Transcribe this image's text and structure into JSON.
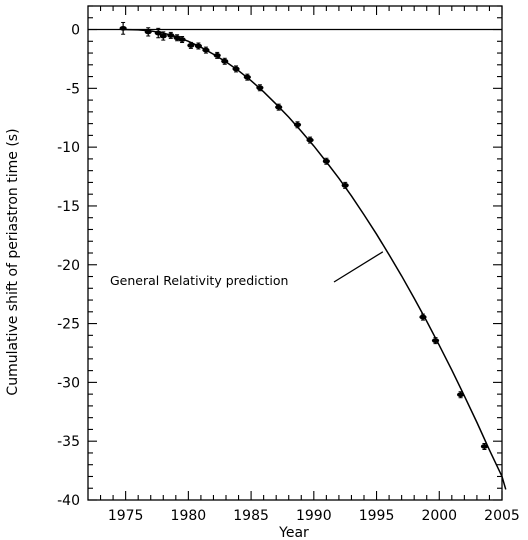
{
  "chart_data": {
    "type": "line",
    "title": "",
    "xlabel": "Year",
    "ylabel": "Cumulative shift of periastron time (s)",
    "xlim": [
      1972,
      2005
    ],
    "ylim": [
      -40,
      2
    ],
    "x_ticks": [
      1975,
      1980,
      1985,
      1990,
      1995,
      2000,
      2005
    ],
    "y_ticks": [
      0,
      -5,
      -10,
      -15,
      -20,
      -25,
      -30,
      -35,
      -40
    ],
    "grid": false,
    "legend": "none",
    "reference_line_y": 0,
    "annotation": {
      "text": "General Relativity prediction",
      "points_to": [
        1995.5,
        -18.9
      ]
    },
    "series": [
      {
        "kind": "curve",
        "points": [
          [
            1974.8,
            0.0
          ],
          [
            1976,
            -0.03
          ],
          [
            1977,
            -0.12
          ],
          [
            1978,
            -0.3
          ],
          [
            1979,
            -0.6
          ],
          [
            1980,
            -1.0
          ],
          [
            1981,
            -1.5
          ],
          [
            1982,
            -2.1
          ],
          [
            1983,
            -2.75
          ],
          [
            1984,
            -3.5
          ],
          [
            1985,
            -4.35
          ],
          [
            1986,
            -5.3
          ],
          [
            1987,
            -6.35
          ],
          [
            1988,
            -7.45
          ],
          [
            1989,
            -8.65
          ],
          [
            1990,
            -9.9
          ],
          [
            1991,
            -11.25
          ],
          [
            1992,
            -12.65
          ],
          [
            1993,
            -14.15
          ],
          [
            1994,
            -15.75
          ],
          [
            1995,
            -17.4
          ],
          [
            1996,
            -19.15
          ],
          [
            1997,
            -20.95
          ],
          [
            1998,
            -22.85
          ],
          [
            1999,
            -24.8
          ],
          [
            2000,
            -26.85
          ],
          [
            2001,
            -28.95
          ],
          [
            2002,
            -31.15
          ],
          [
            2003,
            -33.4
          ],
          [
            2004,
            -35.75
          ],
          [
            2005,
            -38.0
          ],
          [
            2005.3,
            -39.1
          ]
        ]
      },
      {
        "kind": "points",
        "points": [
          {
            "x": 1974.8,
            "y": 0.1,
            "err": 0.5
          },
          {
            "x": 1976.8,
            "y": -0.2,
            "err": 0.35
          },
          {
            "x": 1977.6,
            "y": -0.3,
            "err": 0.4
          },
          {
            "x": 1978.0,
            "y": -0.55,
            "err": 0.35
          },
          {
            "x": 1978.6,
            "y": -0.5,
            "err": 0.25
          },
          {
            "x": 1979.1,
            "y": -0.7,
            "err": 0.2
          },
          {
            "x": 1979.5,
            "y": -0.85,
            "err": 0.2
          },
          {
            "x": 1980.2,
            "y": -1.35,
            "err": 0.15
          },
          {
            "x": 1980.8,
            "y": -1.4,
            "err": 0.15
          },
          {
            "x": 1981.4,
            "y": -1.75,
            "err": 0.15
          },
          {
            "x": 1982.3,
            "y": -2.2,
            "err": 0.15
          },
          {
            "x": 1982.9,
            "y": -2.7,
            "err": 0.15
          },
          {
            "x": 1983.8,
            "y": -3.35,
            "err": 0.15
          },
          {
            "x": 1984.7,
            "y": -4.05,
            "err": 0.15
          },
          {
            "x": 1985.7,
            "y": -4.95,
            "err": 0.15
          },
          {
            "x": 1987.2,
            "y": -6.6,
            "err": 0.15
          },
          {
            "x": 1988.7,
            "y": -8.1,
            "err": 0.15
          },
          {
            "x": 1989.7,
            "y": -9.4,
            "err": 0.15
          },
          {
            "x": 1991.0,
            "y": -11.2,
            "err": 0.15
          },
          {
            "x": 1992.5,
            "y": -13.25,
            "err": 0.15
          },
          {
            "x": 1998.7,
            "y": -24.45,
            "err": 0.15
          },
          {
            "x": 1999.7,
            "y": -26.45,
            "err": 0.15
          },
          {
            "x": 2001.7,
            "y": -31.05,
            "err": 0.15
          },
          {
            "x": 2003.6,
            "y": -35.45,
            "err": 0.15
          }
        ]
      }
    ]
  }
}
